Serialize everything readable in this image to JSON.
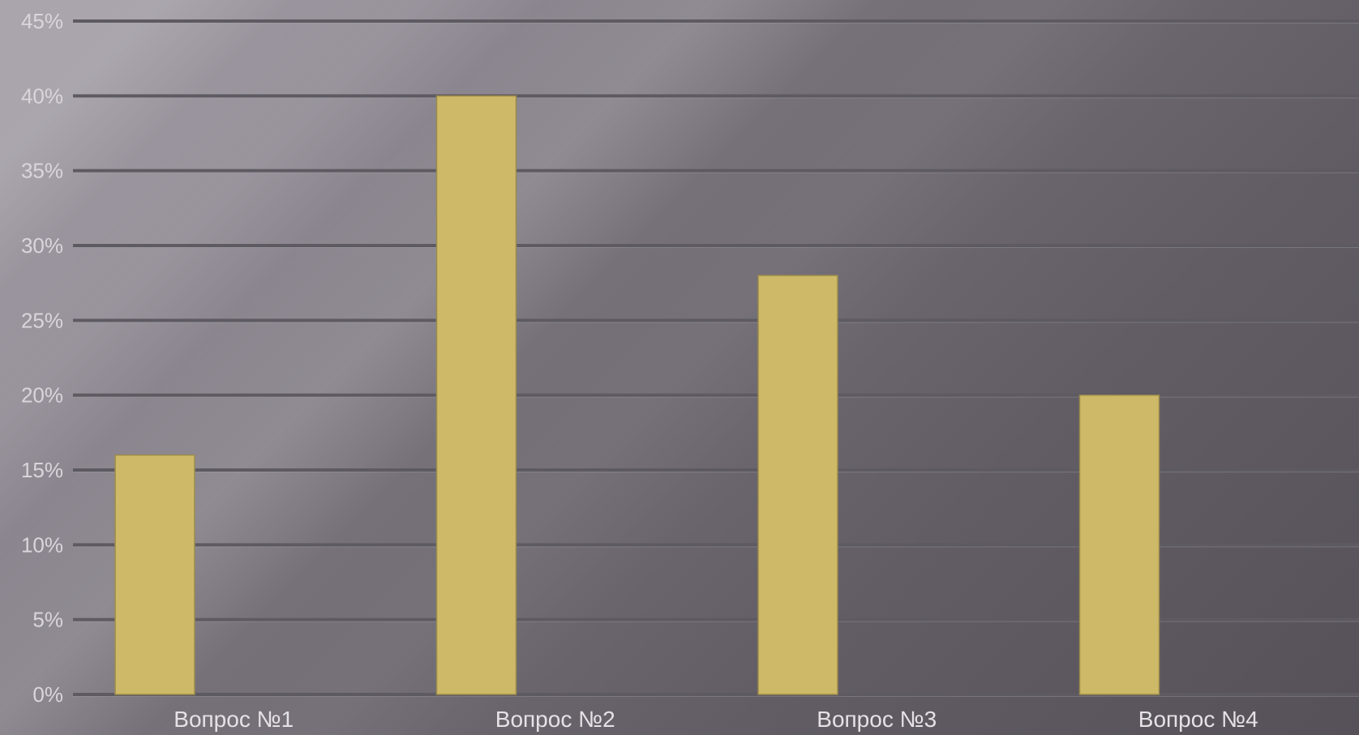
{
  "chart_data": {
    "type": "bar",
    "categories": [
      "Вопрос №1",
      "Вопрос №2",
      "Вопрос №3",
      "Вопрос №4"
    ],
    "values": [
      16,
      40,
      28,
      20
    ],
    "value_unit": "%",
    "ylim": [
      0,
      45
    ],
    "ytick_step": 5,
    "yticks": [
      "0%",
      "5%",
      "10%",
      "15%",
      "20%",
      "25%",
      "30%",
      "35%",
      "40%",
      "45%"
    ],
    "title": "",
    "xlabel": "",
    "ylabel": "",
    "grid": true,
    "legend": "none",
    "colors": {
      "bar": "#cdb967",
      "bar_edge": "#9a8b4c",
      "grid": "#5e5a62",
      "grid_highlight": "#a9a5ac",
      "tick_text": "#d9d6db",
      "category_text": "#e4e2e6"
    }
  }
}
